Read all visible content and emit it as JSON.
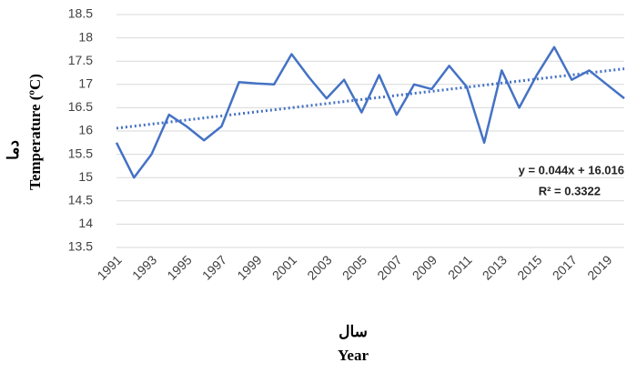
{
  "chart_data": {
    "type": "line",
    "y_label_fa": "دما",
    "y_label": "Temperature (ºC)",
    "x_label_fa": "سال",
    "x_label": "Year",
    "x": [
      1991,
      1992,
      1993,
      1994,
      1995,
      1996,
      1997,
      1998,
      1999,
      2000,
      2001,
      2002,
      2003,
      2004,
      2005,
      2006,
      2007,
      2008,
      2009,
      2010,
      2011,
      2012,
      2013,
      2014,
      2015,
      2016,
      2017,
      2018,
      2019,
      2020
    ],
    "series": [
      {
        "color": "#4472c4",
        "values": [
          15.75,
          15.0,
          15.5,
          16.35,
          16.1,
          15.8,
          16.1,
          17.05,
          17.02,
          17.0,
          17.65,
          17.15,
          16.7,
          17.1,
          16.4,
          17.2,
          16.35,
          17.0,
          16.9,
          17.4,
          16.95,
          15.75,
          17.3,
          16.5,
          17.2,
          17.8,
          17.1,
          17.3,
          17.0,
          16.7
        ]
      }
    ],
    "trend": {
      "slope": 0.044,
      "intercept": 16.016,
      "equation": "y = 0.044x + 16.016",
      "r2": "R² = 0.3322",
      "color": "#4472c4"
    },
    "xlim": [
      1991,
      2020
    ],
    "xticks": [
      1991,
      1993,
      1995,
      1997,
      1999,
      2001,
      2003,
      2005,
      2007,
      2009,
      2011,
      2013,
      2015,
      2017,
      2019
    ],
    "ylim": [
      13.5,
      18.5
    ],
    "yticks": [
      13.5,
      14,
      14.5,
      15,
      15.5,
      16,
      16.5,
      17,
      17.5,
      18,
      18.5
    ],
    "grid": true
  }
}
